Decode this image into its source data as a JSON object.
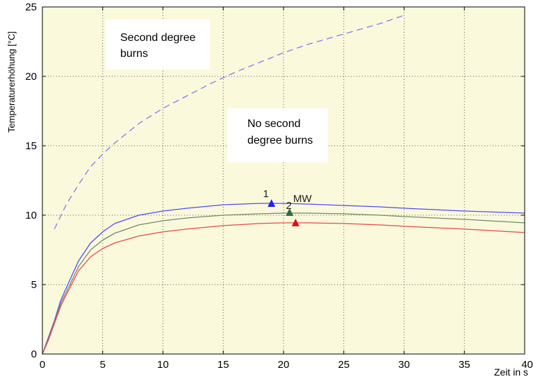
{
  "chart_data": {
    "type": "line",
    "xlabel": "Zeit in s",
    "ylabel": "Temperaturerhöhung [°C]",
    "xlim": [
      0,
      40
    ],
    "ylim": [
      0,
      25
    ],
    "xticks": [
      "0",
      "5",
      "10",
      "15",
      "20",
      "25",
      "30",
      "35",
      "40"
    ],
    "yticks": [
      "0",
      "5",
      "10",
      "15",
      "20",
      "25"
    ],
    "grid": true,
    "background_color": "#fbf9dc",
    "series": [
      {
        "color": "#7b7bf0",
        "style": "dashed",
        "x": [
          1,
          2,
          3,
          4,
          5,
          6,
          8,
          10,
          12,
          14,
          16,
          18,
          20,
          22,
          24,
          26,
          28,
          30
        ],
        "y": [
          9.0,
          10.8,
          12.2,
          13.5,
          14.4,
          15.2,
          16.6,
          17.7,
          18.6,
          19.5,
          20.3,
          21.0,
          21.7,
          22.3,
          22.8,
          23.3,
          23.8,
          24.4
        ]
      },
      {
        "name": "1",
        "color": "#4b4bff",
        "style": "solid",
        "x": [
          0,
          0.5,
          1,
          1.5,
          2,
          3,
          4,
          5,
          6,
          8,
          10,
          12,
          15,
          18,
          20,
          22,
          25,
          28,
          30,
          35,
          40
        ],
        "y": [
          0,
          1.2,
          2.4,
          3.8,
          4.8,
          6.7,
          8.0,
          8.8,
          9.4,
          10.0,
          10.3,
          10.5,
          10.75,
          10.85,
          10.85,
          10.8,
          10.7,
          10.6,
          10.5,
          10.3,
          10.15
        ]
      },
      {
        "name": "MW",
        "color": "#6e8a6e",
        "style": "solid",
        "x": [
          0,
          0.5,
          1,
          1.5,
          2,
          3,
          4,
          5,
          6,
          8,
          10,
          12,
          15,
          18,
          20,
          22,
          25,
          28,
          30,
          35,
          40
        ],
        "y": [
          0,
          1.1,
          2.3,
          3.6,
          4.5,
          6.3,
          7.5,
          8.2,
          8.7,
          9.3,
          9.6,
          9.8,
          10.0,
          10.1,
          10.15,
          10.15,
          10.1,
          10.0,
          9.9,
          9.7,
          9.45
        ]
      },
      {
        "name": "2",
        "color": "#e84848",
        "style": "solid",
        "x": [
          0,
          0.5,
          1,
          1.5,
          2,
          3,
          4,
          5,
          6,
          8,
          10,
          12,
          15,
          18,
          20,
          22,
          25,
          28,
          30,
          35,
          40
        ],
        "y": [
          0,
          1.0,
          2.2,
          3.4,
          4.3,
          6.0,
          7.0,
          7.6,
          8.0,
          8.5,
          8.8,
          9.0,
          9.25,
          9.4,
          9.45,
          9.45,
          9.4,
          9.3,
          9.2,
          9.0,
          8.75
        ]
      }
    ],
    "markers": [
      {
        "x": 19,
        "y": 10.85,
        "color": "#1f1fff"
      },
      {
        "x": 20.5,
        "y": 10.2,
        "color": "#2e6b3a"
      },
      {
        "x": 21,
        "y": 9.45,
        "color": "#e01010"
      }
    ],
    "annotations": [
      {
        "text": "1",
        "x": 18.3,
        "y": 11.3
      },
      {
        "text": "MW",
        "x": 20.8,
        "y": 10.95
      },
      {
        "text": "2",
        "x": 20.2,
        "y": 10.45
      }
    ],
    "text_boxes": [
      {
        "lines": [
          "Second degree",
          "burns"
        ]
      },
      {
        "lines": [
          "No second",
          "degree burns"
        ]
      }
    ]
  }
}
